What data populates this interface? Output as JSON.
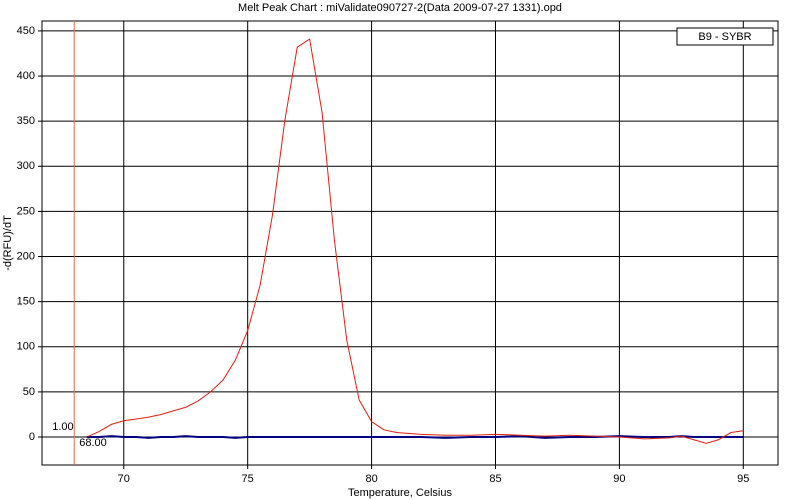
{
  "chart_data": {
    "type": "line",
    "title": "Melt Peak Chart : miValidate090727-2(Data 2009-07-27 1331).opd",
    "x_label": "Temperature, Celsius",
    "y_label": "-d(RFU)/dT",
    "x": [
      68.5,
      69,
      69.5,
      70,
      70.5,
      71,
      71.5,
      72,
      72.5,
      73,
      73.5,
      74,
      74.5,
      75,
      75.5,
      76,
      76.5,
      77,
      77.5,
      78,
      78.5,
      79,
      79.5,
      80,
      80.5,
      81,
      82,
      83,
      84,
      85,
      86,
      87,
      88,
      89,
      90,
      91,
      92,
      92.5,
      93,
      93.5,
      94,
      94.5,
      95
    ],
    "series": [
      {
        "color": "#000080",
        "values": [
          0,
          0,
          1,
          0,
          0,
          -1,
          0,
          0,
          1,
          0,
          0,
          0,
          -1,
          0,
          0,
          0,
          0,
          0,
          0,
          0,
          0,
          0,
          0,
          0,
          0,
          0,
          0,
          -1,
          0,
          0,
          1,
          -1,
          0,
          0,
          1,
          0,
          0,
          1,
          0,
          0,
          0,
          0,
          0
        ]
      },
      {
        "name": "B9 - SYBR",
        "color": "#e02010",
        "values": [
          0,
          6,
          14,
          18,
          20,
          22,
          25,
          29,
          33,
          40,
          50,
          63,
          85,
          118,
          168,
          246,
          351,
          432,
          441,
          360,
          218,
          107,
          41,
          17,
          8,
          5,
          3,
          2,
          2,
          3,
          2,
          1,
          2,
          1,
          0,
          -2,
          -1,
          1,
          -3,
          -7,
          -3,
          5,
          7
        ]
      }
    ],
    "xlim": [
      66.7,
      96.4
    ],
    "ylim": [
      -31,
      461
    ],
    "xticks": [
      70,
      75,
      80,
      85,
      90,
      95
    ],
    "yticks": [
      0,
      50,
      100,
      150,
      200,
      250,
      300,
      350,
      400,
      450
    ],
    "grid": true,
    "legend": "top-right",
    "marker": {
      "color": "#e07040",
      "x": {
        "value": 68,
        "label": "68.00"
      },
      "y": {
        "value": 1,
        "label": "1.00"
      }
    }
  }
}
